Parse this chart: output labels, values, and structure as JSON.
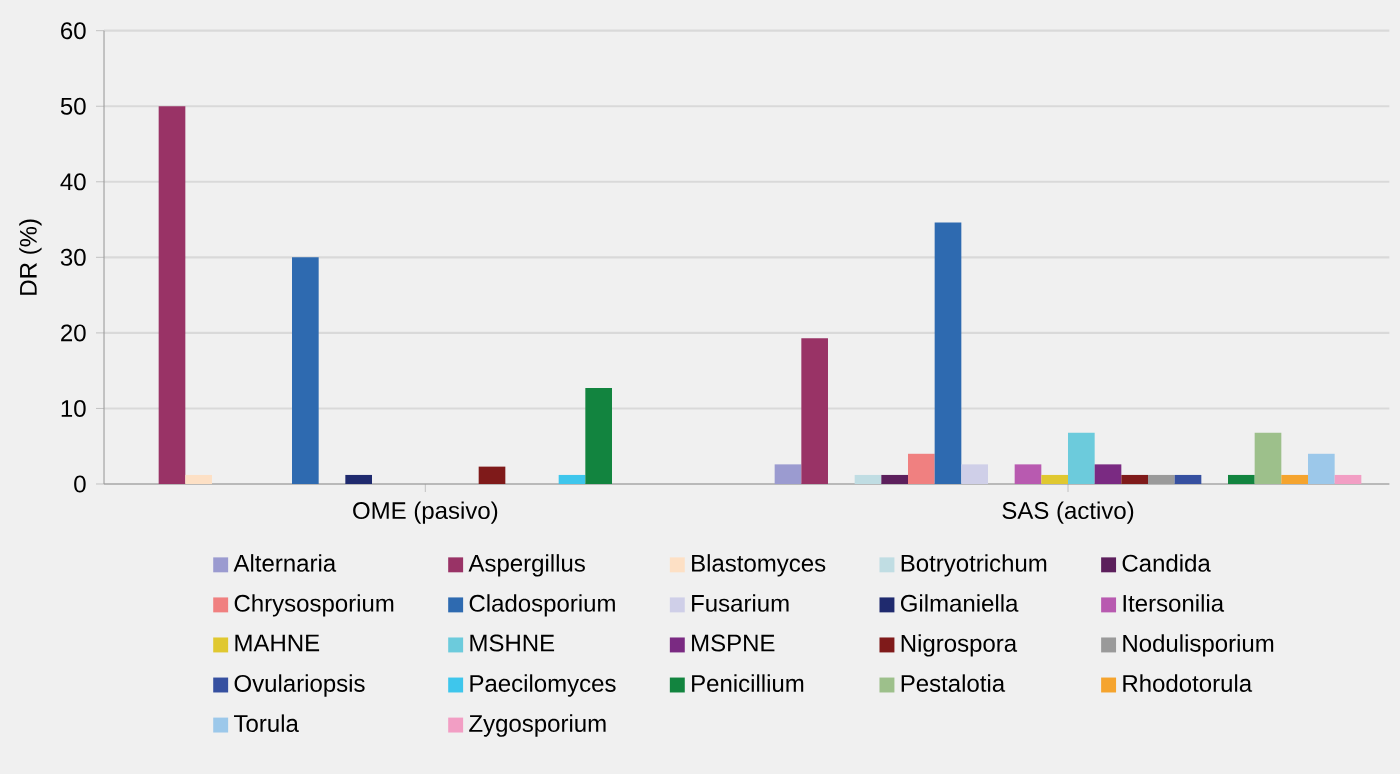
{
  "chart_data": {
    "type": "bar",
    "ylabel": "DR (%)",
    "categories": [
      "OME (pasivo)",
      "SAS (activo)"
    ],
    "ylim": [
      0,
      60
    ],
    "yticks": [
      0,
      10,
      20,
      30,
      40,
      50,
      60
    ],
    "grid": "y",
    "legend": "bottom",
    "series": [
      {
        "name": "Alternaria",
        "color": "#9b9bd0",
        "values": [
          0,
          2.6
        ]
      },
      {
        "name": "Aspergillus",
        "color": "#993366",
        "values": [
          50,
          19.3
        ]
      },
      {
        "name": "Blastomyces",
        "color": "#fde0c5",
        "values": [
          1.2,
          0
        ]
      },
      {
        "name": "Botryotrichum",
        "color": "#c0dde3",
        "values": [
          0,
          1.2
        ]
      },
      {
        "name": "Candida",
        "color": "#5c1f5c",
        "values": [
          0,
          1.2
        ]
      },
      {
        "name": "Chrysosporium",
        "color": "#f08080",
        "values": [
          0,
          4
        ]
      },
      {
        "name": "Cladosporium",
        "color": "#2e6ab0",
        "values": [
          30,
          34.6
        ]
      },
      {
        "name": "Fusarium",
        "color": "#cfcfe8",
        "values": [
          0,
          2.6
        ]
      },
      {
        "name": "Gilmaniella",
        "color": "#1f2a6e",
        "values": [
          1.2,
          0
        ]
      },
      {
        "name": "Itersonilia",
        "color": "#b85ab0",
        "values": [
          0,
          2.6
        ]
      },
      {
        "name": "MAHNE",
        "color": "#e0c830",
        "values": [
          0,
          1.2
        ]
      },
      {
        "name": "MSHNE",
        "color": "#6ccbdc",
        "values": [
          0,
          6.8
        ]
      },
      {
        "name": "MSPNE",
        "color": "#7a2a82",
        "values": [
          0,
          2.6
        ]
      },
      {
        "name": "Nigrospora",
        "color": "#7f1a1a",
        "values": [
          2.3,
          1.2
        ]
      },
      {
        "name": "Nodulisporium",
        "color": "#9a9a9a",
        "values": [
          0,
          1.2
        ]
      },
      {
        "name": "Ovulariopsis",
        "color": "#3650a0",
        "values": [
          0,
          1.2
        ]
      },
      {
        "name": "Paecilomyces",
        "color": "#3ec6ec",
        "values": [
          1.2,
          0
        ]
      },
      {
        "name": "Penicillium",
        "color": "#12843f",
        "values": [
          12.7,
          1.2
        ]
      },
      {
        "name": "Pestalotia",
        "color": "#9dc08b",
        "values": [
          0,
          6.8
        ]
      },
      {
        "name": "Rhodotorula",
        "color": "#f5a42e",
        "values": [
          0,
          1.2
        ]
      },
      {
        "name": "Torula",
        "color": "#9cc8ea",
        "values": [
          0,
          4
        ]
      },
      {
        "name": "Zygosporium",
        "color": "#f29ec4",
        "values": [
          0,
          1.2
        ]
      }
    ]
  }
}
